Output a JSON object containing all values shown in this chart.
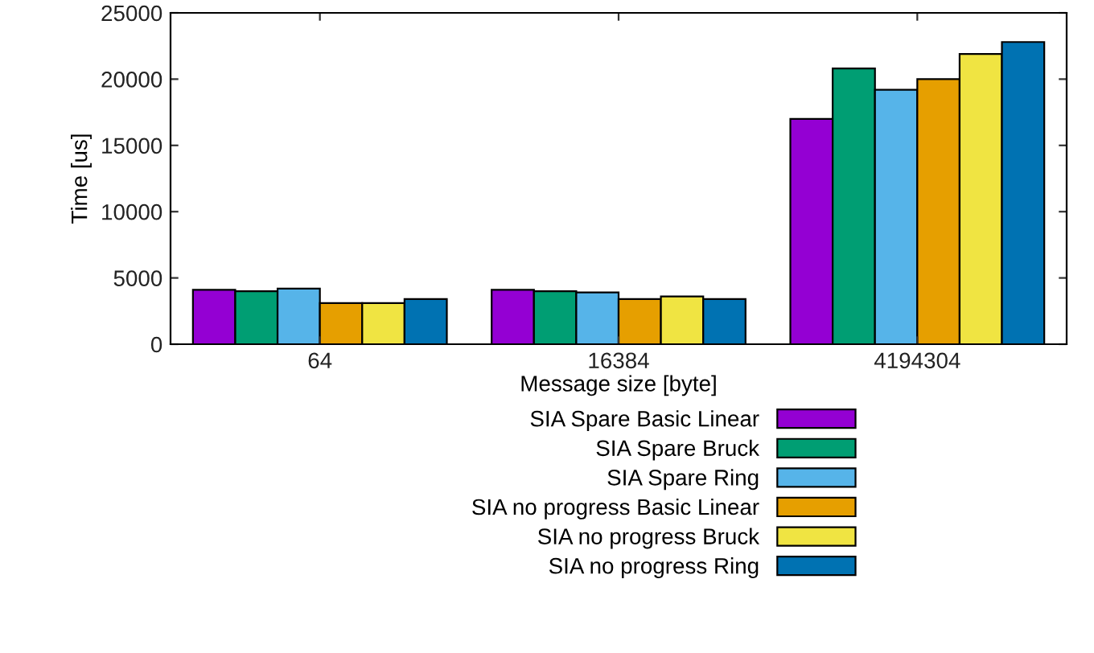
{
  "chart_data": {
    "type": "bar",
    "xlabel": "Message size [byte]",
    "ylabel": "Time [us]",
    "categories": [
      "64",
      "16384",
      "4194304"
    ],
    "series": [
      {
        "name": "SIA Spare Basic Linear",
        "color": "#9400d3",
        "values": [
          4100,
          4100,
          17000
        ]
      },
      {
        "name": "SIA Spare Bruck",
        "color": "#009e73",
        "values": [
          4000,
          4000,
          20800
        ]
      },
      {
        "name": "SIA Spare Ring",
        "color": "#56b4e9",
        "values": [
          4200,
          3900,
          19200
        ]
      },
      {
        "name": "SIA no progress Basic Linear",
        "color": "#e69f00",
        "values": [
          3100,
          3400,
          20000
        ]
      },
      {
        "name": "SIA no progress Bruck",
        "color": "#f0e442",
        "values": [
          3100,
          3600,
          21900
        ]
      },
      {
        "name": "SIA no progress Ring",
        "color": "#0072b2",
        "values": [
          3400,
          3400,
          22800
        ]
      }
    ],
    "ylim": [
      0,
      25000
    ],
    "yticks": [
      0,
      5000,
      10000,
      15000,
      20000,
      25000
    ],
    "grid": false,
    "legend": "bottom"
  }
}
